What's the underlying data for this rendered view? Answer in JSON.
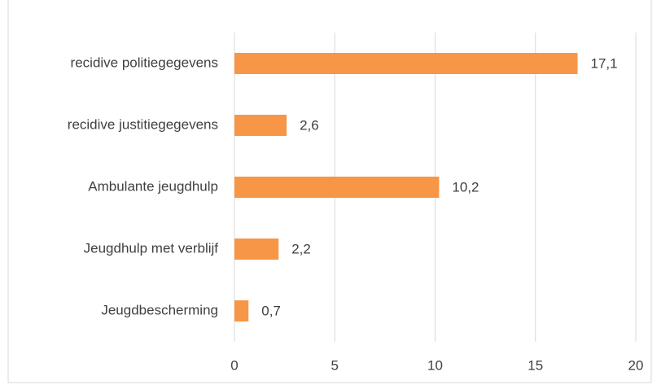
{
  "chart_data": {
    "type": "barh",
    "categories": [
      "recidive politiegegevens",
      "recidive justitiegegevens",
      "Ambulante jeugdhulp",
      "Jeugdhulp met verblijf",
      "Jeugdbescherming"
    ],
    "values": [
      17.1,
      2.6,
      10.2,
      2.2,
      0.7
    ],
    "value_labels": [
      "17,1",
      "2,6",
      "10,2",
      "2,2",
      "0,7"
    ],
    "color": "#f79646",
    "xlim": [
      0,
      20
    ],
    "xticks": [
      0,
      5,
      10,
      15,
      20
    ],
    "grid": true
  }
}
